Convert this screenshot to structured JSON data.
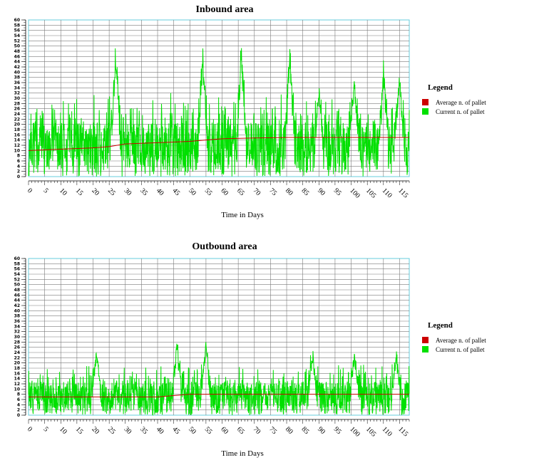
{
  "chart_data": [
    {
      "type": "line",
      "title": "Inbound area",
      "xlabel": "Time in Days",
      "ylabel": "",
      "xlim": [
        0,
        118
      ],
      "ylim": [
        0,
        60
      ],
      "grid": true,
      "x_ticks": [
        0,
        5,
        10,
        15,
        20,
        25,
        30,
        35,
        40,
        45,
        50,
        55,
        60,
        65,
        70,
        75,
        80,
        85,
        90,
        95,
        100,
        105,
        110,
        115
      ],
      "y_ticks": [
        0,
        2,
        4,
        6,
        8,
        10,
        12,
        14,
        16,
        18,
        20,
        22,
        24,
        26,
        28,
        30,
        32,
        34,
        36,
        38,
        40,
        42,
        44,
        46,
        48,
        50,
        52,
        54,
        56,
        58,
        60
      ],
      "legend_title": "Legend",
      "legend_placement": "right",
      "series": [
        {
          "name": "Average n. of pallet",
          "color": "#cc0000",
          "x": [
            0,
            10,
            20,
            25,
            30,
            40,
            50,
            55,
            60,
            70,
            80,
            90,
            100,
            110,
            118
          ],
          "values": [
            10,
            10.5,
            11,
            11.5,
            12.5,
            13,
            13.5,
            14,
            14.5,
            14.8,
            15,
            15,
            15,
            15,
            15
          ]
        },
        {
          "name": "Current n. of pallet",
          "color": "#00e000",
          "peaks": [
            {
              "x": 27,
              "y": 53
            },
            {
              "x": 54,
              "y": 52
            },
            {
              "x": 66,
              "y": 53
            },
            {
              "x": 81,
              "y": 52
            },
            {
              "x": 90,
              "y": 38
            },
            {
              "x": 101,
              "y": 40
            },
            {
              "x": 110,
              "y": 45
            },
            {
              "x": 115,
              "y": 43
            }
          ],
          "range_min": 0,
          "range_max": 33,
          "baseline_mean": 13
        }
      ]
    },
    {
      "type": "line",
      "title": "Outbound area",
      "xlabel": "Time in Days",
      "ylabel": "",
      "xlim": [
        0,
        118
      ],
      "ylim": [
        0,
        60
      ],
      "grid": true,
      "x_ticks": [
        0,
        5,
        10,
        15,
        20,
        25,
        30,
        35,
        40,
        45,
        50,
        55,
        60,
        65,
        70,
        75,
        80,
        85,
        90,
        95,
        100,
        105,
        110,
        115
      ],
      "y_ticks": [
        0,
        2,
        4,
        6,
        8,
        10,
        12,
        14,
        16,
        18,
        20,
        22,
        24,
        26,
        28,
        30,
        32,
        34,
        36,
        38,
        40,
        42,
        44,
        46,
        48,
        50,
        52,
        54,
        56,
        58,
        60
      ],
      "legend_title": "Legend",
      "legend_placement": "right",
      "series": [
        {
          "name": "Average n. of pallet",
          "color": "#cc0000",
          "x": [
            0,
            20,
            40,
            45,
            50,
            60,
            70,
            80,
            90,
            100,
            110,
            118
          ],
          "values": [
            7,
            7,
            7,
            7.5,
            8,
            8,
            8,
            8,
            8,
            8,
            8,
            8
          ]
        },
        {
          "name": "Current n. of pallet",
          "color": "#00e000",
          "peaks": [
            {
              "x": 21,
              "y": 26
            },
            {
              "x": 46,
              "y": 30
            },
            {
              "x": 55,
              "y": 29
            },
            {
              "x": 88,
              "y": 27
            },
            {
              "x": 101,
              "y": 25
            },
            {
              "x": 114,
              "y": 25
            }
          ],
          "range_min": 0,
          "range_max": 20,
          "baseline_mean": 8
        }
      ]
    }
  ]
}
